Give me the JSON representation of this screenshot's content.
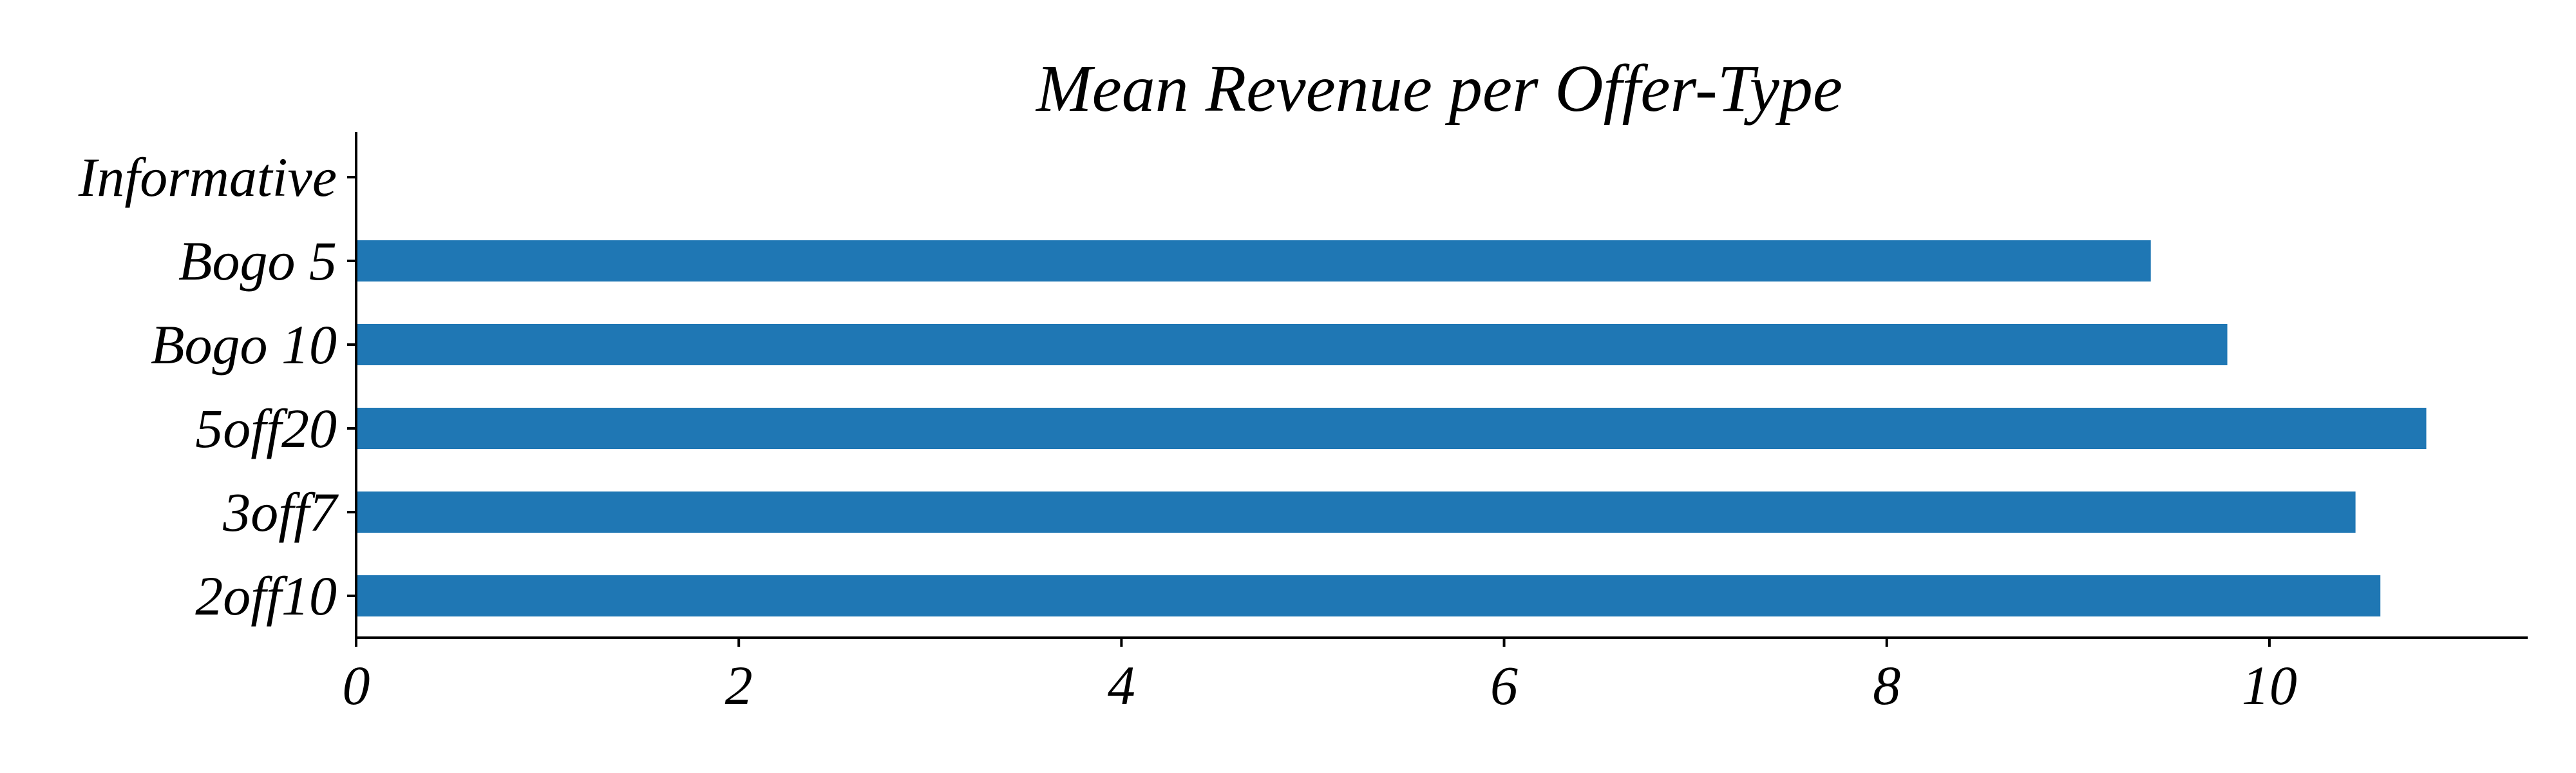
{
  "chart_data": {
    "type": "bar",
    "orientation": "horizontal",
    "title": "Mean Revenue per Offer-Type",
    "xlabel": "",
    "ylabel": "",
    "categories": [
      "2off10",
      "3off7",
      "5off20",
      "Bogo 10",
      "Bogo 5",
      "Informative"
    ],
    "values": [
      10.58,
      10.45,
      10.82,
      9.78,
      9.38,
      0
    ],
    "xlim": [
      0,
      11.35
    ],
    "xticks": [
      0,
      2,
      4,
      6,
      8,
      10
    ],
    "grid": false,
    "legend": "none",
    "bar_color": "#1f77b4"
  }
}
